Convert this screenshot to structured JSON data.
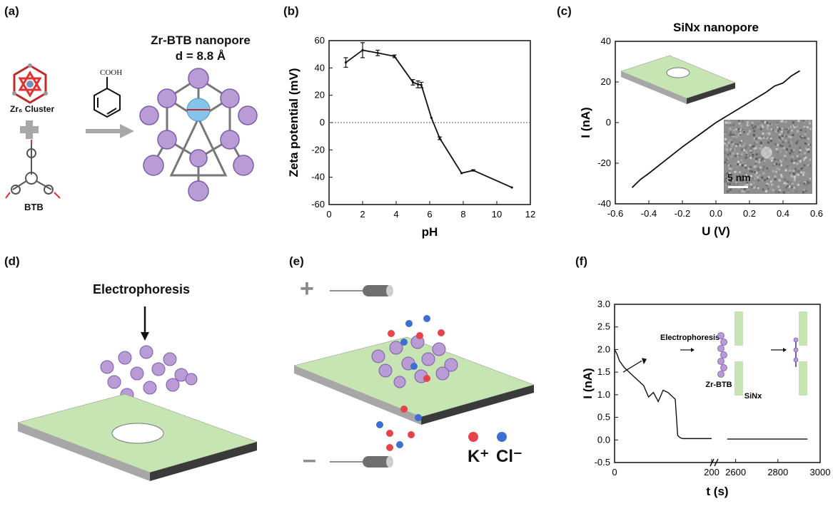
{
  "panels": {
    "a": {
      "label": "(a)",
      "title_line1": "Zr-BTB nanopore",
      "title_line2": "d = 8.8 Å",
      "cluster_label": "Zr₆ Cluster",
      "btb_label": "BTB",
      "benzoic_label": "COOH"
    },
    "b": {
      "label": "(b)"
    },
    "c": {
      "label": "(c)",
      "inset_scale": "5 nm"
    },
    "d": {
      "label": "(d)",
      "arrow_label": "Electrophoresis"
    },
    "e": {
      "label": "(e)",
      "plus": "+",
      "minus": "–",
      "k_label": "K⁺",
      "cl_label": "Cl⁻"
    },
    "f": {
      "label": "(f)",
      "inset_electrophoresis": "Electrophoresis",
      "inset_zrbtb": "Zr-BTB",
      "inset_sinx": "SiNx"
    }
  },
  "colors": {
    "membrane_top": "#c6e5b3",
    "membrane_side": "#a7a7a7",
    "membrane_edge": "#3a3a3a",
    "mof": "#b99bd6",
    "k_ion": "#e8434a",
    "cl_ion": "#3c6fcf"
  },
  "chart_data": [
    {
      "id": "b",
      "type": "line",
      "xlabel": "pH",
      "ylabel": "Zeta potential (mV)",
      "xlim": [
        0,
        12
      ],
      "ylim": [
        -60,
        60
      ],
      "xticks": [
        "0",
        "2",
        "4",
        "6",
        "8",
        "10",
        "12"
      ],
      "yticks": [
        "-60",
        "-40",
        "-20",
        "0",
        "20",
        "40",
        "60"
      ],
      "reference_line_y": 0,
      "x": [
        1.0,
        2.0,
        2.9,
        3.9,
        5.0,
        5.3,
        5.5,
        6.1,
        6.6,
        7.9,
        8.6,
        10.9
      ],
      "y": [
        44,
        53,
        51,
        48.5,
        29.5,
        28,
        27.5,
        3.5,
        -11.5,
        -37,
        -35,
        -47.5
      ],
      "err": [
        3.5,
        5.5,
        2,
        1,
        2,
        2.5,
        2,
        0,
        1,
        0,
        0.5,
        0
      ]
    },
    {
      "id": "c",
      "type": "line",
      "title": "SiNx nanopore",
      "xlabel": "U (V)",
      "ylabel": "I (nA)",
      "xlim": [
        -0.6,
        0.6
      ],
      "ylim": [
        -40,
        40
      ],
      "xticks": [
        "-0.6",
        "-0.4",
        "-0.2",
        "0.0",
        "0.2",
        "0.4",
        "0.6"
      ],
      "yticks": [
        "-40",
        "-20",
        "0",
        "20",
        "40"
      ],
      "x": [
        -0.5,
        -0.45,
        -0.4,
        -0.3,
        -0.2,
        -0.1,
        0.0,
        0.1,
        0.2,
        0.3,
        0.35,
        0.4,
        0.45,
        0.5
      ],
      "y": [
        -32,
        -28,
        -25,
        -18.5,
        -12,
        -6,
        0,
        5,
        10,
        15,
        18,
        19.5,
        23,
        25.5
      ]
    },
    {
      "id": "f",
      "type": "line",
      "xlabel": "t (s)",
      "ylabel": "I (nA)",
      "ylim": [
        -0.5,
        3.0
      ],
      "xticks": [
        "0",
        "200",
        "2600",
        "2800",
        "3000"
      ],
      "yticks": [
        "-0.5",
        "0.0",
        "0.5",
        "1.0",
        "1.5",
        "2.0",
        "2.5",
        "3.0"
      ],
      "x": [
        0,
        5,
        10,
        20,
        30,
        40,
        50,
        60,
        70,
        80,
        90,
        100,
        110,
        120,
        125,
        130,
        135,
        140,
        200,
        2560,
        2700,
        2800,
        2900,
        2940
      ],
      "y": [
        2.0,
        1.9,
        1.75,
        1.6,
        1.5,
        1.4,
        1.3,
        1.2,
        0.95,
        1.05,
        0.85,
        1.1,
        1.05,
        0.95,
        0.9,
        0.1,
        0.05,
        0.03,
        0.03,
        0.02,
        0.02,
        0.02,
        0.02,
        0.02
      ]
    }
  ]
}
